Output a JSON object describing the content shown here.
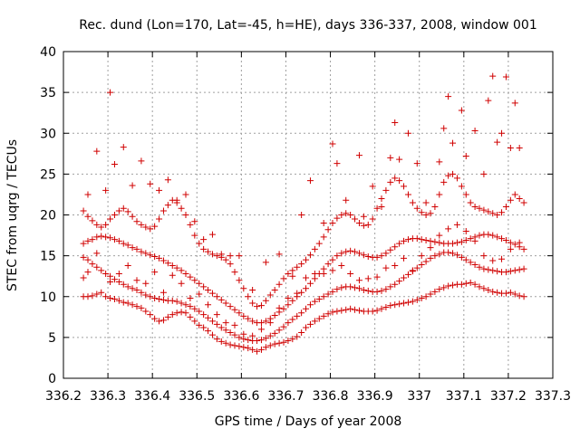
{
  "chart_data": {
    "type": "scatter",
    "title": "Rec. dund (Lon=170, Lat=-45, h=HE), days 336-337, 2008, window 001",
    "xlabel": "GPS time / Days of year 2008",
    "ylabel": "STEC from uqrg / TECUs",
    "xlim": [
      336.2,
      337.3
    ],
    "ylim": [
      0,
      40
    ],
    "xticks": [
      336.2,
      336.3,
      336.4,
      336.5,
      336.6,
      336.7,
      336.8,
      336.9,
      337.0,
      337.1,
      337.2,
      337.3
    ],
    "xtick_labels": [
      "336.2",
      "336.3",
      "336.4",
      "336.5",
      "336.6",
      "336.7",
      "336.8",
      "336.9",
      "337",
      "337.1",
      "337.2",
      "337.3"
    ],
    "yticks": [
      0,
      5,
      10,
      15,
      20,
      25,
      30,
      35,
      40
    ],
    "ytick_labels": [
      "0",
      "5",
      "10",
      "15",
      "20",
      "25",
      "30",
      "35",
      "40"
    ],
    "grid": true,
    "marker": "+",
    "color": "#d00000",
    "series": [
      {
        "x": [
          336.245,
          336.255,
          336.265,
          336.275,
          336.285,
          336.295,
          336.305,
          336.315,
          336.325,
          336.335,
          336.345,
          336.355,
          336.365,
          336.375,
          336.385,
          336.395,
          336.405,
          336.415,
          336.425,
          336.435,
          336.445,
          336.455,
          336.465,
          336.475,
          336.485,
          336.495,
          336.505,
          336.515,
          336.525,
          336.535,
          336.545,
          336.555,
          336.565,
          336.575,
          336.585,
          336.595,
          336.605,
          336.615,
          336.625,
          336.635,
          336.645,
          336.655,
          336.665,
          336.675,
          336.685,
          336.695,
          336.705,
          336.715,
          336.725,
          336.735,
          336.745,
          336.755,
          336.765,
          336.775,
          336.785,
          336.795,
          336.805,
          336.815,
          336.825,
          336.835,
          336.845,
          336.855,
          336.865,
          336.875,
          336.885,
          336.895,
          336.905,
          336.915,
          336.925,
          336.935,
          336.945,
          336.955,
          336.965,
          336.975,
          336.985,
          336.995,
          337.005,
          337.015,
          337.025,
          337.035,
          337.045,
          337.055,
          337.065,
          337.075,
          337.085,
          337.095,
          337.105,
          337.115,
          337.125,
          337.135,
          337.145,
          337.155,
          337.165,
          337.175,
          337.185,
          337.195,
          337.205,
          337.215,
          337.225,
          337.235
        ],
        "y": [
          10.0,
          10.0,
          10.1,
          10.3,
          10.5,
          10.0,
          9.8,
          9.7,
          9.5,
          9.3,
          9.2,
          9.0,
          8.8,
          8.6,
          8.2,
          7.8,
          7.3,
          7.0,
          7.1,
          7.5,
          7.8,
          8.0,
          8.1,
          8.0,
          7.5,
          7.0,
          6.5,
          6.2,
          5.8,
          5.3,
          4.8,
          4.5,
          4.3,
          4.1,
          4.0,
          3.9,
          3.8,
          3.7,
          3.5,
          3.3,
          3.5,
          3.8,
          4.0,
          4.2,
          4.3,
          4.4,
          4.6,
          4.8,
          5.1,
          5.6,
          6.2,
          6.6,
          7.0,
          7.3,
          7.6,
          7.9,
          8.1,
          8.2,
          8.3,
          8.4,
          8.5,
          8.4,
          8.3,
          8.2,
          8.2,
          8.2,
          8.3,
          8.5,
          8.7,
          8.9,
          9.0,
          9.1,
          9.2,
          9.3,
          9.4,
          9.6,
          9.8,
          10.0,
          10.3,
          10.6,
          10.9,
          11.1,
          11.3,
          11.4,
          11.5,
          11.5,
          11.6,
          11.7,
          11.5,
          11.2,
          11.0,
          10.8,
          10.6,
          10.5,
          10.4,
          10.4,
          10.5,
          10.3,
          10.1,
          10.0
        ]
      },
      {
        "x": [
          336.245,
          336.255,
          336.265,
          336.275,
          336.285,
          336.295,
          336.305,
          336.315,
          336.325,
          336.335,
          336.345,
          336.355,
          336.365,
          336.375,
          336.385,
          336.395,
          336.405,
          336.415,
          336.425,
          336.435,
          336.445,
          336.455,
          336.465,
          336.475,
          336.485,
          336.495,
          336.505,
          336.515,
          336.525,
          336.535,
          336.545,
          336.555,
          336.565,
          336.575,
          336.585,
          336.595,
          336.605,
          336.615,
          336.625,
          336.635,
          336.645,
          336.655,
          336.665,
          336.675,
          336.685,
          336.695,
          336.705,
          336.715,
          336.725,
          336.735,
          336.745,
          336.755,
          336.765,
          336.775,
          336.785,
          336.795,
          336.805,
          336.815,
          336.825,
          336.835,
          336.845,
          336.855,
          336.865,
          336.875,
          336.885,
          336.895,
          336.905,
          336.915,
          336.925,
          336.935,
          336.945,
          336.955,
          336.965,
          336.975,
          336.985,
          336.995,
          337.005,
          337.015,
          337.025,
          337.035,
          337.045,
          337.055,
          337.065,
          337.075,
          337.085,
          337.095,
          337.105,
          337.115,
          337.125,
          337.135,
          337.145,
          337.155,
          337.165,
          337.175,
          337.185,
          337.195,
          337.205,
          337.215,
          337.225,
          337.235
        ],
        "y": [
          14.8,
          14.5,
          14.0,
          13.6,
          13.2,
          12.8,
          12.5,
          12.1,
          11.8,
          11.5,
          11.2,
          11.0,
          10.8,
          10.5,
          10.2,
          10.0,
          9.8,
          9.7,
          9.6,
          9.5,
          9.5,
          9.4,
          9.2,
          9.0,
          8.8,
          8.5,
          8.2,
          7.8,
          7.4,
          7.0,
          6.6,
          6.2,
          5.9,
          5.6,
          5.3,
          5.0,
          4.8,
          4.7,
          4.6,
          4.6,
          4.7,
          4.9,
          5.2,
          5.5,
          5.9,
          6.3,
          6.8,
          7.2,
          7.6,
          8.0,
          8.5,
          9.0,
          9.4,
          9.7,
          10.0,
          10.3,
          10.6,
          10.9,
          11.1,
          11.2,
          11.2,
          11.1,
          11.0,
          10.8,
          10.7,
          10.6,
          10.6,
          10.7,
          10.9,
          11.2,
          11.5,
          11.9,
          12.3,
          12.7,
          13.1,
          13.5,
          13.9,
          14.3,
          14.7,
          15.0,
          15.2,
          15.4,
          15.4,
          15.3,
          15.1,
          14.8,
          14.5,
          14.2,
          13.9,
          13.6,
          13.4,
          13.3,
          13.2,
          13.1,
          13.0,
          13.0,
          13.1,
          13.2,
          13.3,
          13.4
        ]
      },
      {
        "x": [
          336.245,
          336.255,
          336.265,
          336.275,
          336.285,
          336.295,
          336.305,
          336.315,
          336.325,
          336.335,
          336.345,
          336.355,
          336.365,
          336.375,
          336.385,
          336.395,
          336.405,
          336.415,
          336.425,
          336.435,
          336.445,
          336.455,
          336.465,
          336.475,
          336.485,
          336.495,
          336.505,
          336.515,
          336.525,
          336.535,
          336.545,
          336.555,
          336.565,
          336.575,
          336.585,
          336.595,
          336.605,
          336.615,
          336.625,
          336.635,
          336.645,
          336.655,
          336.665,
          336.675,
          336.685,
          336.695,
          336.705,
          336.715,
          336.725,
          336.735,
          336.745,
          336.755,
          336.765,
          336.775,
          336.785,
          336.795,
          336.805,
          336.815,
          336.825,
          336.835,
          336.845,
          336.855,
          336.865,
          336.875,
          336.885,
          336.895,
          336.905,
          336.915,
          336.925,
          336.935,
          336.945,
          336.955,
          336.965,
          336.975,
          336.985,
          336.995,
          337.005,
          337.015,
          337.025,
          337.035,
          337.045,
          337.055,
          337.065,
          337.075,
          337.085,
          337.095,
          337.105,
          337.115,
          337.125,
          337.135,
          337.145,
          337.155,
          337.165,
          337.175,
          337.185,
          337.195,
          337.205,
          337.215,
          337.225,
          337.235
        ],
        "y": [
          16.5,
          16.8,
          17.0,
          17.3,
          17.4,
          17.3,
          17.2,
          17.0,
          16.8,
          16.5,
          16.3,
          16.0,
          15.8,
          15.5,
          15.3,
          15.1,
          14.9,
          14.7,
          14.4,
          14.1,
          13.8,
          13.5,
          13.2,
          12.8,
          12.4,
          12.0,
          11.6,
          11.2,
          10.8,
          10.4,
          10.0,
          9.6,
          9.2,
          8.8,
          8.4,
          8.0,
          7.6,
          7.3,
          7.0,
          6.8,
          6.8,
          7.0,
          7.3,
          7.7,
          8.1,
          8.5,
          9.0,
          9.5,
          10.0,
          10.5,
          11.0,
          11.6,
          12.2,
          12.8,
          13.4,
          14.0,
          14.5,
          15.0,
          15.3,
          15.5,
          15.6,
          15.5,
          15.3,
          15.1,
          14.9,
          14.8,
          14.8,
          15.0,
          15.3,
          15.7,
          16.1,
          16.5,
          16.8,
          17.0,
          17.1,
          17.1,
          17.0,
          16.9,
          16.8,
          16.7,
          16.6,
          16.5,
          16.5,
          16.5,
          16.6,
          16.7,
          16.9,
          17.1,
          17.3,
          17.5,
          17.6,
          17.6,
          17.5,
          17.3,
          17.1,
          16.9,
          16.6,
          16.4,
          16.1,
          15.8
        ]
      },
      {
        "x": [
          336.245,
          336.255,
          336.265,
          336.275,
          336.285,
          336.295,
          336.305,
          336.315,
          336.325,
          336.335,
          336.345,
          336.355,
          336.365,
          336.375,
          336.385,
          336.395,
          336.405,
          336.415,
          336.425,
          336.435,
          336.445,
          336.455,
          336.465,
          336.475,
          336.485,
          336.495,
          336.505,
          336.515,
          336.525,
          336.535,
          336.545,
          336.555,
          336.565,
          336.575,
          336.585,
          336.595,
          336.605,
          336.615,
          336.625,
          336.635,
          336.645,
          336.655,
          336.665,
          336.675,
          336.685,
          336.695,
          336.705,
          336.715,
          336.725,
          336.735,
          336.745,
          336.755,
          336.765,
          336.775,
          336.785,
          336.795,
          336.805,
          336.815,
          336.825,
          336.835,
          336.845,
          336.855,
          336.865,
          336.875,
          336.885,
          336.895,
          336.905,
          336.915,
          336.925,
          336.935,
          336.945,
          336.955,
          336.965,
          336.975,
          336.985,
          336.995,
          337.005,
          337.015,
          337.025,
          337.035,
          337.045,
          337.055,
          337.065,
          337.075,
          337.085,
          337.095,
          337.105,
          337.115,
          337.125,
          337.135,
          337.145,
          337.155,
          337.165,
          337.175,
          337.185,
          337.195,
          337.205,
          337.215,
          337.225,
          337.235
        ],
        "y": [
          20.5,
          19.8,
          19.3,
          18.8,
          18.5,
          18.8,
          19.5,
          20.0,
          20.5,
          20.8,
          20.4,
          19.8,
          19.2,
          18.8,
          18.5,
          18.3,
          18.6,
          19.5,
          20.5,
          21.2,
          21.8,
          21.5,
          20.8,
          20.0,
          18.8,
          17.5,
          16.5,
          15.8,
          15.5,
          15.2,
          15.0,
          14.8,
          14.5,
          14.0,
          13.0,
          12.0,
          11.0,
          10.0,
          9.2,
          8.8,
          8.9,
          9.5,
          10.2,
          10.8,
          11.5,
          12.2,
          12.8,
          13.2,
          13.6,
          14.0,
          14.5,
          15.1,
          15.8,
          16.5,
          17.3,
          18.2,
          19.0,
          19.6,
          20.0,
          20.2,
          20.0,
          19.5,
          19.0,
          18.7,
          18.8,
          19.5,
          20.8,
          22.0,
          23.0,
          24.0,
          24.5,
          24.2,
          23.5,
          22.5,
          21.5,
          20.8,
          20.3,
          20.0,
          20.2,
          21.0,
          22.5,
          24.0,
          24.8,
          25.0,
          24.5,
          23.5,
          22.5,
          21.5,
          21.0,
          20.8,
          20.6,
          20.4,
          20.2,
          20.0,
          20.3,
          21.0,
          21.8,
          22.5,
          22.0,
          21.5
        ]
      },
      {
        "x": [
          336.255,
          336.275,
          336.295,
          336.305,
          336.315,
          336.335,
          336.355,
          336.375,
          336.395,
          336.415,
          336.435,
          336.455,
          336.475,
          336.495,
          336.515,
          336.535,
          336.555,
          336.575,
          336.595,
          336.625,
          336.655,
          336.685,
          336.715,
          336.735,
          336.755,
          336.785,
          336.805,
          336.815,
          336.835,
          336.865,
          336.875,
          336.895,
          336.915,
          336.935,
          336.945,
          336.955,
          336.975,
          336.995,
          337.015,
          337.045,
          337.055,
          337.065,
          337.075,
          337.095,
          337.105,
          337.125,
          337.145,
          337.155,
          337.165,
          337.175,
          337.185,
          337.195,
          337.205,
          337.215,
          337.225
        ],
        "y": [
          22.5,
          27.8,
          23.0,
          35.0,
          26.2,
          28.3,
          23.6,
          26.6,
          23.8,
          23.0,
          24.3,
          21.8,
          22.5,
          19.2,
          17.0,
          17.6,
          15.2,
          15.0,
          15.0,
          10.8,
          14.2,
          15.2,
          12.5,
          20.0,
          24.2,
          19.0,
          28.7,
          26.3,
          21.8,
          27.3,
          19.8,
          23.5,
          21.0,
          27.0,
          31.3,
          26.8,
          30.0,
          26.3,
          21.5,
          26.5,
          30.6,
          34.5,
          28.8,
          32.8,
          27.2,
          30.3,
          25.0,
          34.0,
          37.0,
          28.9,
          30.0,
          36.9,
          28.2,
          33.7,
          28.2
        ]
      },
      {
        "x": [
          336.245,
          336.255,
          336.275,
          336.305,
          336.325,
          336.345,
          336.365,
          336.385,
          336.405,
          336.425,
          336.445,
          336.465,
          336.485,
          336.505,
          336.525,
          336.545,
          336.565,
          336.585,
          336.605,
          336.625,
          336.645,
          336.665,
          336.685,
          336.705,
          336.725,
          336.745,
          336.765,
          336.785,
          336.805,
          336.825,
          336.845,
          336.865,
          336.885,
          336.905,
          336.925,
          336.945,
          336.965,
          336.985,
          337.005,
          337.025,
          337.045,
          337.065,
          337.085,
          337.105,
          337.125,
          337.145,
          337.165,
          337.185,
          337.205,
          337.225
        ],
        "y": [
          12.3,
          13.0,
          15.3,
          11.8,
          12.8,
          13.8,
          12.0,
          11.6,
          13.0,
          10.5,
          12.6,
          11.6,
          9.8,
          10.3,
          9.0,
          7.8,
          6.8,
          6.5,
          5.4,
          5.2,
          6.0,
          6.8,
          8.6,
          9.8,
          10.4,
          12.3,
          12.8,
          12.8,
          13.2,
          13.8,
          12.8,
          12.0,
          12.2,
          12.4,
          13.5,
          13.8,
          14.7,
          13.2,
          15.0,
          16.0,
          17.5,
          18.3,
          18.8,
          18.0,
          16.8,
          15.0,
          14.4,
          14.6,
          15.8,
          16.6
        ]
      }
    ]
  }
}
